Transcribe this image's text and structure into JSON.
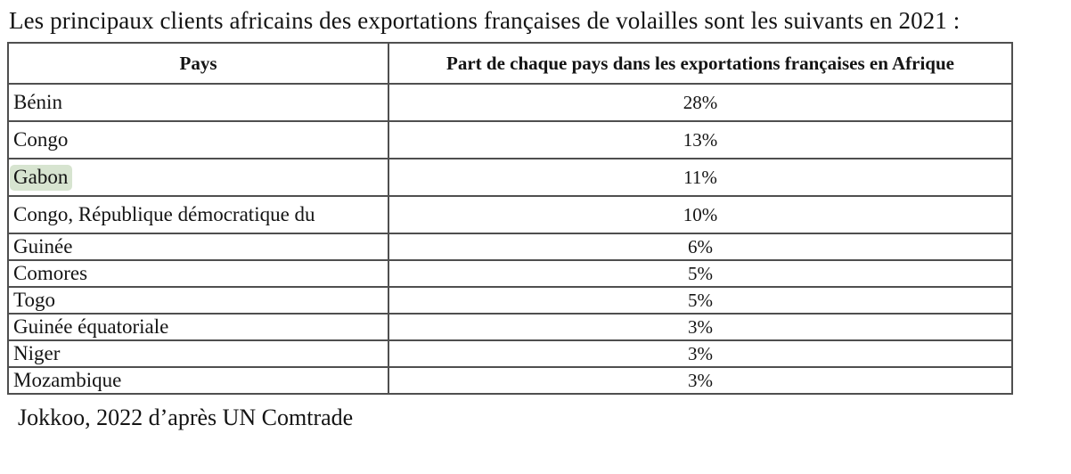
{
  "document": {
    "intro": "Les principaux clients africains des exportations françaises de volailles sont les suivants en 2021 :",
    "source": "Jokkoo, 2022 d’après UN Comtrade"
  },
  "table": {
    "columns": [
      "Pays",
      "Part de chaque pays dans les exportations françaises en Afrique"
    ],
    "rows": [
      {
        "pays": "Bénin",
        "part": "28%",
        "highlighted": false,
        "tall": true
      },
      {
        "pays": "Congo",
        "part": "13%",
        "highlighted": false,
        "tall": true
      },
      {
        "pays": "Gabon",
        "part": "11%",
        "highlighted": true,
        "tall": true
      },
      {
        "pays": "Congo, République démocratique du",
        "part": "10%",
        "highlighted": false,
        "tall": true
      },
      {
        "pays": "Guinée",
        "part": "6%",
        "highlighted": false,
        "tall": false
      },
      {
        "pays": "Comores",
        "part": "5%",
        "highlighted": false,
        "tall": false
      },
      {
        "pays": "Togo",
        "part": "5%",
        "highlighted": false,
        "tall": false
      },
      {
        "pays": "Guinée équatoriale",
        "part": "3%",
        "highlighted": false,
        "tall": false
      },
      {
        "pays": "Niger",
        "part": "3%",
        "highlighted": false,
        "tall": false
      },
      {
        "pays": "Mozambique",
        "part": "3%",
        "highlighted": false,
        "tall": false
      }
    ],
    "highlight_color": "#d7e4d0",
    "border_color": "#4f4f4f"
  },
  "chart_data": {
    "type": "table",
    "columns": [
      "Pays",
      "Part de chaque pays dans les exportations françaises en Afrique"
    ],
    "categories": [
      "Bénin",
      "Congo",
      "Gabon",
      "Congo, République démocratique du",
      "Guinée",
      "Comores",
      "Togo",
      "Guinée équatoriale",
      "Niger",
      "Mozambique"
    ],
    "values": [
      28,
      13,
      11,
      10,
      6,
      5,
      5,
      3,
      3,
      3
    ],
    "unit": "%",
    "source": "Jokkoo, 2022 d’après UN Comtrade",
    "year": "2021"
  }
}
